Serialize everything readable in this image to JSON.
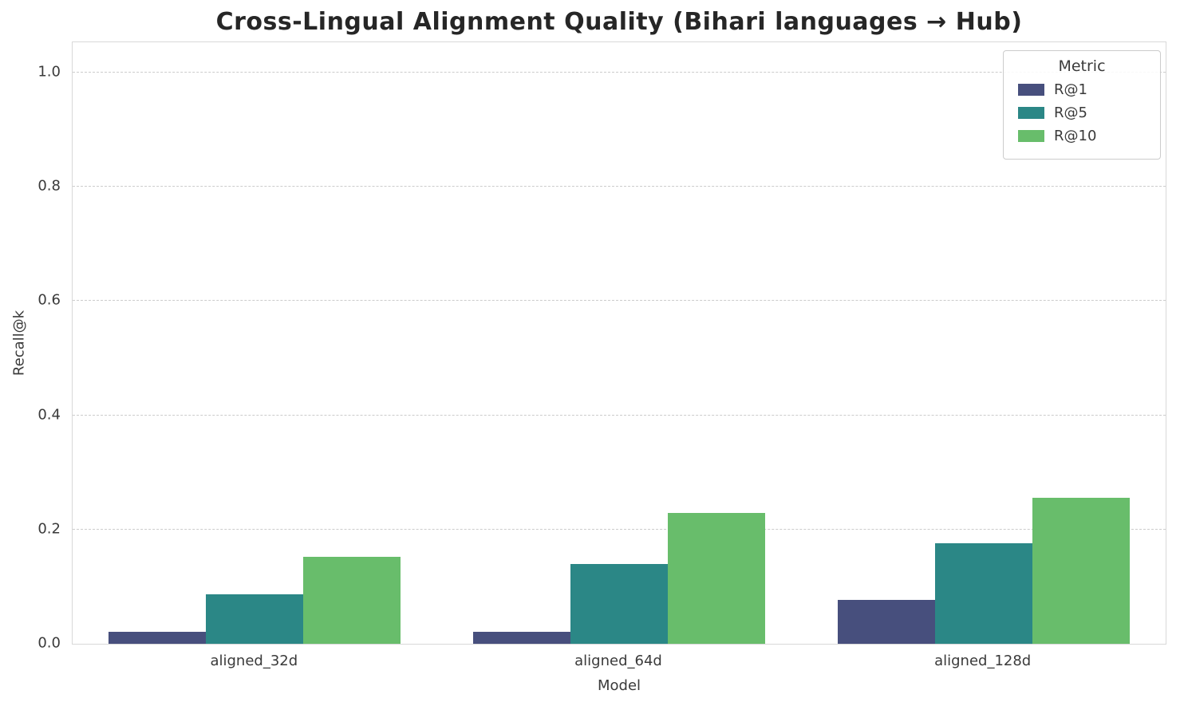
{
  "chart_data": {
    "type": "bar",
    "title": "Cross-Lingual Alignment Quality (Bihari languages → Hub)",
    "xlabel": "Model",
    "ylabel": "Recall@k",
    "legend_title": "Metric",
    "legend_position": "upper right",
    "grid": true,
    "grid_style": "dashed",
    "categories": [
      "aligned_32d",
      "aligned_64d",
      "aligned_128d"
    ],
    "series": [
      {
        "name": "R@1",
        "color": "#474f7d",
        "values": [
          0.021,
          0.021,
          0.077
        ]
      },
      {
        "name": "R@5",
        "color": "#2b8786",
        "values": [
          0.086,
          0.139,
          0.176
        ]
      },
      {
        "name": "R@10",
        "color": "#68bd6b",
        "values": [
          0.152,
          0.229,
          0.255
        ]
      }
    ],
    "ylim": [
      0,
      1.053
    ],
    "yticks": [
      0.0,
      0.2,
      0.4,
      0.6,
      0.8,
      1.0
    ],
    "ytick_labels": [
      "0.0",
      "0.2",
      "0.4",
      "0.6",
      "0.8",
      "1.0"
    ],
    "colors": {
      "background": "#ffffff",
      "gridline": "#cccccc",
      "spine": "#d8d8d8",
      "text": "#3a3a3a",
      "title_text": "#262626"
    }
  }
}
